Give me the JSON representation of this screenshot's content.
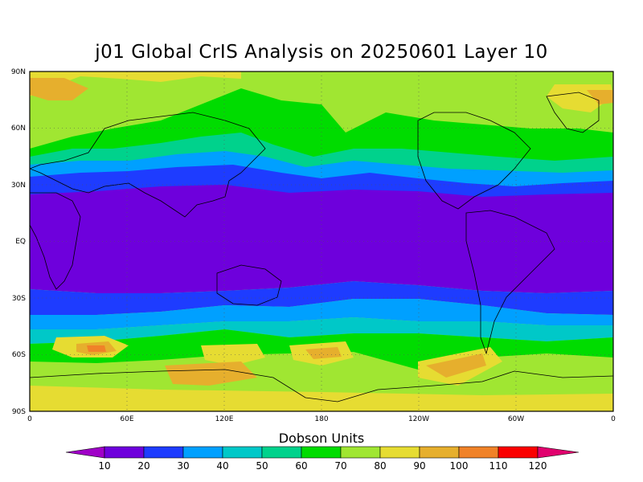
{
  "title": "j01 Global CrIS Analysis on 20250601 Layer 10",
  "colorbar": {
    "title": "Dobson Units",
    "ticks": [
      "10",
      "20",
      "30",
      "40",
      "50",
      "60",
      "70",
      "80",
      "90",
      "100",
      "110",
      "120"
    ],
    "colors": [
      "#a000c8",
      "#6e00dc",
      "#1e3cff",
      "#00a0ff",
      "#00c8c8",
      "#00d28c",
      "#00dc00",
      "#a0e632",
      "#e6dc32",
      "#e6af2d",
      "#f08228",
      "#fa0000",
      "#e1006e"
    ]
  },
  "axes": {
    "lat_ticks": [
      "90N",
      "60N",
      "30N",
      "EQ",
      "30S",
      "60S",
      "90S"
    ],
    "lon_ticks": [
      "0",
      "60E",
      "120E",
      "180",
      "120W",
      "60W",
      "0"
    ]
  },
  "chart_data": {
    "type": "heatmap",
    "title": "j01 Global CrIS Analysis on 20250601 Layer 10",
    "colorbar_label": "Dobson Units",
    "levels": [
      10,
      20,
      30,
      40,
      50,
      60,
      70,
      80,
      90,
      100,
      110,
      120
    ],
    "xlim": [
      0,
      360
    ],
    "ylim": [
      -90,
      90
    ],
    "grid": true,
    "zonal_pattern": [
      {
        "lat": 90,
        "value": 80
      },
      {
        "lat": 75,
        "value": 70
      },
      {
        "lat": 60,
        "value": 60
      },
      {
        "lat": 45,
        "value": 40
      },
      {
        "lat": 35,
        "value": 30
      },
      {
        "lat": 20,
        "value": 15
      },
      {
        "lat": 0,
        "value": 15
      },
      {
        "lat": -20,
        "value": 15
      },
      {
        "lat": -35,
        "value": 30
      },
      {
        "lat": -45,
        "value": 45
      },
      {
        "lat": -55,
        "value": 70
      },
      {
        "lat": -65,
        "value": 85
      },
      {
        "lat": -90,
        "value": 80
      }
    ]
  }
}
